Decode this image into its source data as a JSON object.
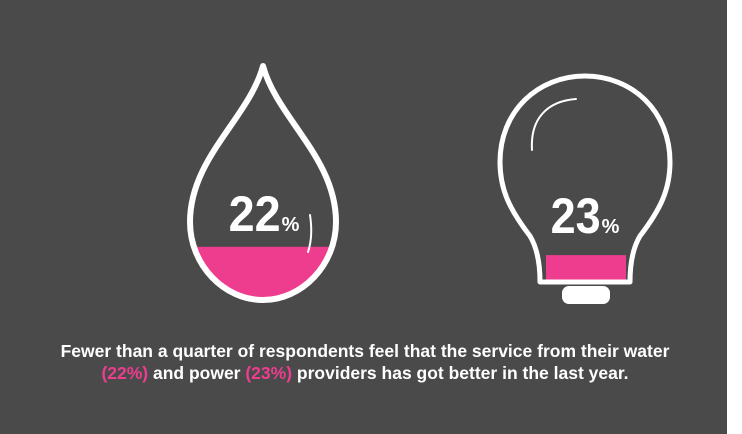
{
  "colors": {
    "background": "#4a4a4b",
    "accent": "#ee3d8f",
    "text": "#ffffff"
  },
  "water": {
    "icon": "water-drop-icon",
    "percent_number": "22",
    "percent_sign": "%",
    "fill_fraction": 0.22
  },
  "power": {
    "icon": "light-bulb-icon",
    "percent_number": "23",
    "percent_sign": "%",
    "fill_fraction": 0.23
  },
  "caption": {
    "part1": "Fewer than a quarter of respondents feel that the service from their water ",
    "water_value": "(22%)",
    "part2": " and power ",
    "power_value": "(23%)",
    "part3": " providers has got better in the last year."
  }
}
